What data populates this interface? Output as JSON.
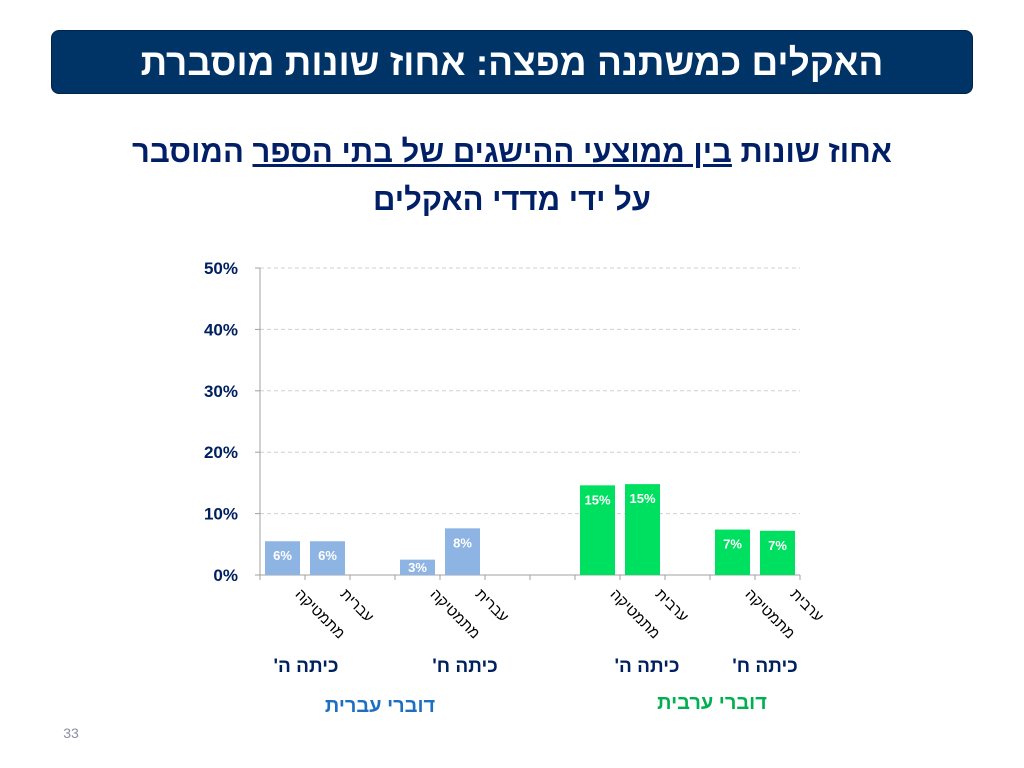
{
  "slide": {
    "title": "האקלים כמשתנה מפצה: אחוז שונות מוסברת",
    "subtitle_part1": "אחוז שונות ",
    "subtitle_part2": "בין ממוצעי ההישגים של בתי הספר",
    "subtitle_part3": " המוסבר",
    "subtitle_line2": "על ידי מדדי האקלים",
    "slide_number": "33"
  },
  "colors": {
    "banner": "#003366",
    "hebrew_bars": "#8eb4e3",
    "arabic_bars": "#00e060",
    "hebrew_group_text": "#1f6fc0",
    "arabic_group_text": "#00b050",
    "axis_text": "#002060"
  },
  "chart_data": {
    "type": "bar",
    "ylim": [
      0,
      0.5
    ],
    "y_ticks": [
      0,
      0.1,
      0.2,
      0.3,
      0.4,
      0.5
    ],
    "y_tick_labels": [
      "0%",
      "10%",
      "20%",
      "30%",
      "40%",
      "50%"
    ],
    "grid": true,
    "bars": [
      {
        "category": "מתמטיקה",
        "grade": "כיתה ה'",
        "group": "דוברי עברית",
        "value": 0.055,
        "label": "6%"
      },
      {
        "category": "עברית",
        "grade": "כיתה ה'",
        "group": "דוברי עברית",
        "value": 0.055,
        "label": "6%"
      },
      {
        "category": "מתמטיקה",
        "grade": "כיתה ח'",
        "group": "דוברי עברית",
        "value": 0.025,
        "label": "3%"
      },
      {
        "category": "עברית",
        "grade": "כיתה ח'",
        "group": "דוברי עברית",
        "value": 0.076,
        "label": "8%"
      },
      {
        "category": "מתמטיקה",
        "grade": "כיתה ה'",
        "group": "דוברי ערבית",
        "value": 0.146,
        "label": "15%"
      },
      {
        "category": "ערבית",
        "grade": "כיתה ה'",
        "group": "דוברי ערבית",
        "value": 0.148,
        "label": "15%"
      },
      {
        "category": "מתמטיקה",
        "grade": "כיתה ח'",
        "group": "דוברי ערבית",
        "value": 0.074,
        "label": "7%"
      },
      {
        "category": "ערבית",
        "grade": "כיתה ח'",
        "group": "דוברי ערבית",
        "value": 0.072,
        "label": "7%"
      }
    ],
    "grade_labels": [
      "כיתה ה'",
      "כיתה ח'",
      "כיתה ה'",
      "כיתה ח'"
    ],
    "group_labels": [
      "דוברי עברית",
      "דוברי ערבית"
    ]
  }
}
